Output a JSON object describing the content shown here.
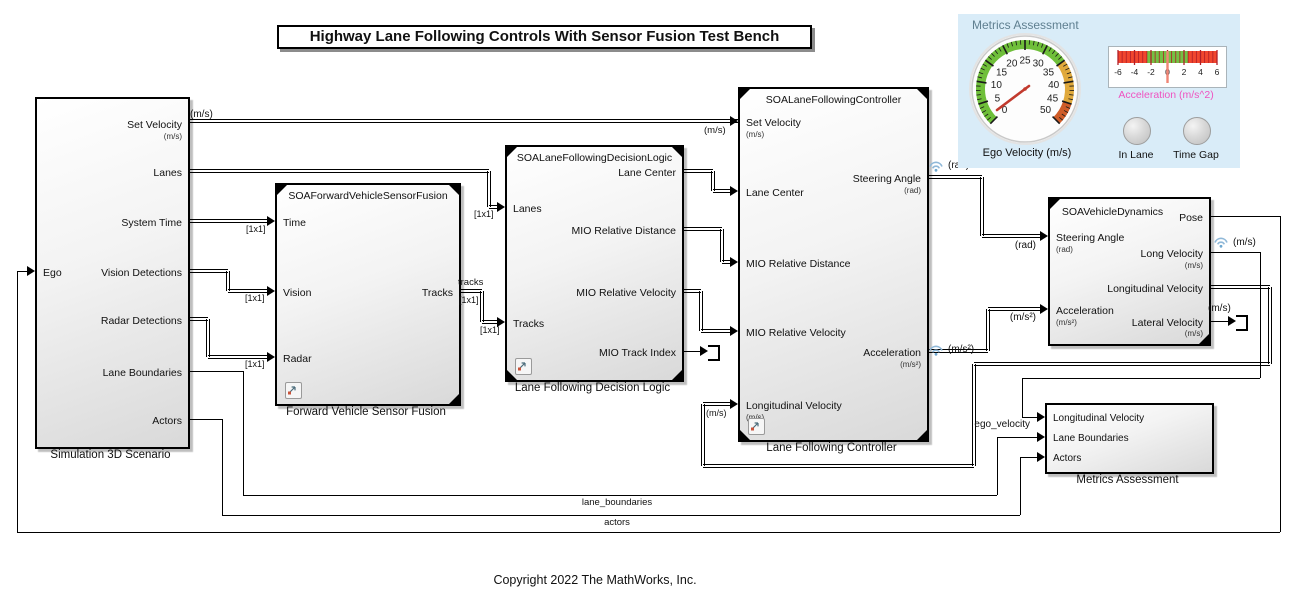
{
  "title_banner": "Highway Lane Following Controls With Sensor Fusion Test Bench",
  "copyright": "Copyright 2022 The MathWorks, Inc.",
  "blocks": {
    "scenario": {
      "caption": "Simulation 3D Scenario",
      "inputs": [
        {
          "label": "Ego"
        }
      ],
      "outputs": [
        {
          "label": "Set Velocity",
          "sub": "(m/s)"
        },
        {
          "label": "Lanes"
        },
        {
          "label": "System Time"
        },
        {
          "label": "Vision Detections"
        },
        {
          "label": "Radar Detections"
        },
        {
          "label": "Lane Boundaries"
        },
        {
          "label": "Actors"
        }
      ]
    },
    "sensor_fusion": {
      "header": "SOAForwardVehicleSensorFusion",
      "caption": "Forward Vehicle Sensor Fusion",
      "inputs": [
        {
          "label": "Time"
        },
        {
          "label": "Vision"
        },
        {
          "label": "Radar"
        }
      ],
      "outputs": [
        {
          "label": "Tracks"
        }
      ]
    },
    "decision_logic": {
      "header": "SOALaneFollowingDecisionLogic",
      "caption": "Lane Following Decision Logic",
      "inputs": [
        {
          "label": "Lanes"
        },
        {
          "label": "Tracks"
        }
      ],
      "outputs": [
        {
          "label": "Lane Center"
        },
        {
          "label": "MIO Relative Distance"
        },
        {
          "label": "MIO Relative Velocity"
        },
        {
          "label": "MIO Track Index"
        }
      ]
    },
    "controller": {
      "header": "SOALaneFollowingController",
      "caption": "Lane Following Controller",
      "inputs": [
        {
          "label": "Set Velocity",
          "sub": "(m/s)"
        },
        {
          "label": "Lane Center"
        },
        {
          "label": "MIO Relative Distance"
        },
        {
          "label": "MIO Relative Velocity"
        },
        {
          "label": "Longitudinal Velocity",
          "sub": "(m/s)"
        }
      ],
      "outputs": [
        {
          "label": "Steering Angle",
          "sub": "(rad)"
        },
        {
          "label": "Acceleration",
          "sub": "(m/s²)"
        }
      ]
    },
    "vehicle_dynamics": {
      "header": "SOAVehicleDynamics",
      "inputs": [
        {
          "label": "Steering Angle",
          "sub": "(rad)"
        },
        {
          "label": "Acceleration",
          "sub": "(m/s²)"
        }
      ],
      "outputs": [
        {
          "label": "Pose"
        },
        {
          "label": "Long Velocity",
          "sub": "(m/s)"
        },
        {
          "label": "Longitudinal Velocity"
        },
        {
          "label": "Lateral Velocity",
          "sub": "(m/s)"
        }
      ]
    },
    "metrics": {
      "caption": "Metrics Assessment",
      "inputs": [
        {
          "label": "Longitudinal Velocity"
        },
        {
          "label": "Lane Boundaries"
        },
        {
          "label": "Actors"
        }
      ]
    }
  },
  "labels": {
    "ms": "(m/s)",
    "rad": "(rad)",
    "ms2": "(m/s²)",
    "dim": "[1x1]",
    "tracks": "tracks",
    "lane_boundaries": "lane_boundaries",
    "actors": "actors",
    "ego_velocity": "ego_velocity"
  },
  "dashboard": {
    "title": "Metrics Assessment",
    "gauge": {
      "label": "Ego Velocity (m/s)",
      "min": 0,
      "max": 50,
      "value": 1.5,
      "tick_step": 5,
      "minor_step": 1,
      "zones": [
        {
          "from": 0,
          "to": 35,
          "color": "#6fbf3a"
        },
        {
          "from": 35,
          "to": 45,
          "color": "#e0a93c"
        },
        {
          "from": 45,
          "to": 50,
          "color": "#cf5c28"
        }
      ],
      "needle_color": "#c23a2e"
    },
    "linear_gauge": {
      "label": "Acceleration (m/s^2)",
      "min": -6,
      "max": 6,
      "value": 0,
      "tick_step": 2,
      "minor_step": 0.5,
      "zones": [
        {
          "from": -6,
          "to": -2.5,
          "color": "#f1462e"
        },
        {
          "from": -2.5,
          "to": 2.5,
          "color": "#74c044"
        },
        {
          "from": 2.5,
          "to": 6,
          "color": "#f1462e"
        }
      ],
      "label_color": "#ef52c0",
      "needle_color": "#f08575",
      "tick_color": "#b01e28"
    },
    "lamps": [
      {
        "label": "In Lane"
      },
      {
        "label": "Time Gap"
      }
    ],
    "panel_bg": "#d9ecf8"
  }
}
